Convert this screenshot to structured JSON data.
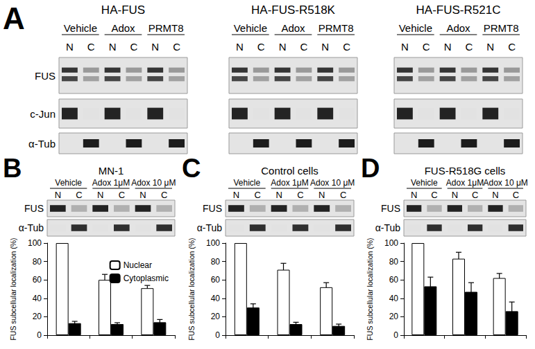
{
  "figure": {
    "panel_a": {
      "letter": "A",
      "row_labels": [
        "FUS",
        "c-Jun",
        "α-Tub"
      ],
      "lane_labels": [
        "N",
        "C"
      ],
      "blots": [
        {
          "title": "HA-FUS",
          "conditions": [
            "Vehicle",
            "Adox",
            "PRMT8"
          ]
        },
        {
          "title": "HA-FUS-R518K",
          "conditions": [
            "Vehicle",
            "Adox",
            "PRMT8"
          ]
        },
        {
          "title": "HA-FUS-R521C",
          "conditions": [
            "Vehicle",
            "Adox",
            "PRMT8"
          ]
        }
      ]
    }
  },
  "chart_data": [
    {
      "type": "bar",
      "panel": "B",
      "title": "MN-1",
      "conditions": [
        "Vehicle",
        "Adox 1μM",
        "Adox 10 μM"
      ],
      "lane_labels": [
        "N",
        "C"
      ],
      "blot_rows": [
        "FUS",
        "α-Tub"
      ],
      "ylabel": "FUS subcellular localization (%)",
      "categories": [
        null,
        null,
        null
      ],
      "series": [
        {
          "name": "Nuclear",
          "color": "#ffffff",
          "values": [
            100,
            60,
            51
          ],
          "errors": [
            0,
            6,
            3
          ]
        },
        {
          "name": "Cytoplasmic",
          "color": "#000000",
          "values": [
            13,
            12,
            14
          ],
          "errors": [
            2,
            1.5,
            3
          ]
        }
      ],
      "ylim": [
        0,
        100
      ],
      "yticks": [
        0,
        20,
        40,
        60,
        80,
        100
      ],
      "grid": false,
      "tick_labels": "y",
      "legend": "upper right"
    },
    {
      "type": "bar",
      "panel": "C",
      "title": "Control cells",
      "conditions": [
        "Vehicle",
        "Adox 1μM",
        "Adox 10 μM"
      ],
      "lane_labels": [
        "N",
        "C"
      ],
      "blot_rows": [
        "FUS",
        "α-Tub"
      ],
      "ylabel": "FUS subcellular localization (%)",
      "categories": [
        null,
        null,
        null
      ],
      "series": [
        {
          "name": "Nuclear",
          "color": "#ffffff",
          "values": [
            100,
            71,
            52
          ],
          "errors": [
            0,
            7,
            5
          ]
        },
        {
          "name": "Cytoplasmic",
          "color": "#000000",
          "values": [
            30,
            12,
            10
          ],
          "errors": [
            4,
            2,
            2
          ]
        }
      ],
      "ylim": [
        0,
        100
      ],
      "yticks": [
        0,
        20,
        40,
        60,
        80,
        100
      ],
      "grid": false,
      "tick_labels": "y"
    },
    {
      "type": "bar",
      "panel": "D",
      "title": "FUS-R518G cells",
      "conditions": [
        "Vehicle",
        "Adox 1μM",
        "Adox 10 μM"
      ],
      "lane_labels": [
        "N",
        "C"
      ],
      "blot_rows": [
        "FUS",
        "α-Tub"
      ],
      "ylabel": "FUS subcellular localization (%)",
      "categories": [
        null,
        null,
        null
      ],
      "series": [
        {
          "name": "Nuclear",
          "color": "#ffffff",
          "values": [
            100,
            83,
            62
          ],
          "errors": [
            0,
            7,
            5
          ]
        },
        {
          "name": "Cytoplasmic",
          "color": "#000000",
          "values": [
            53,
            47,
            26
          ],
          "errors": [
            10,
            10,
            10
          ]
        }
      ],
      "ylim": [
        0,
        100
      ],
      "yticks": [
        0,
        20,
        40,
        60,
        80,
        100
      ],
      "grid": false,
      "tick_labels": "y"
    }
  ]
}
